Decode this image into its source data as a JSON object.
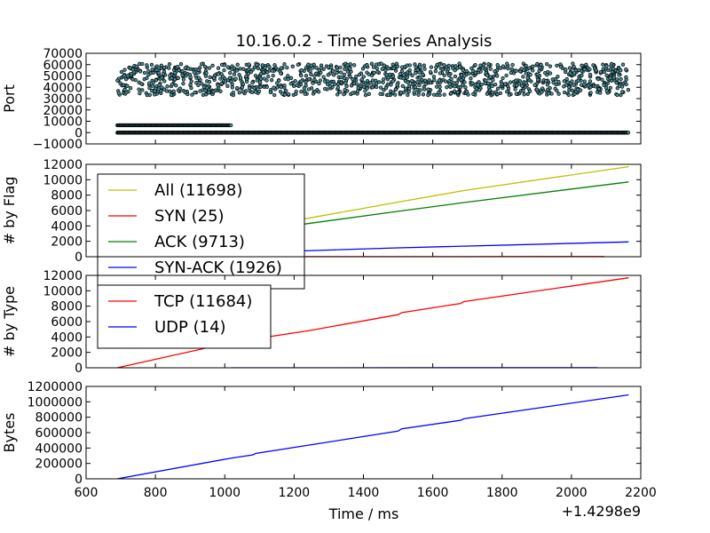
{
  "title": "10.16.0.2 - Time Series Analysis",
  "x_axis": {
    "label": "Time / ms",
    "offset_label": "+1.4298e9",
    "range": [
      600,
      2200
    ],
    "ticks": [
      "600",
      "800",
      "1000",
      "1200",
      "1400",
      "1600",
      "1800",
      "2000",
      "2200"
    ]
  },
  "chart_data": [
    {
      "type": "scatter",
      "ylabel": "Port",
      "xlim": [
        600,
        2200
      ],
      "ylim": [
        -10000,
        70000
      ],
      "yticks": [
        "70000",
        "60000",
        "50000",
        "40000",
        "30000",
        "20000",
        "10000",
        "0",
        "−10000"
      ],
      "series": [
        {
          "name": "",
          "description_points": "ephemeral ports scattered 33000-61000 over x 690-2165",
          "x_range": [
            690,
            2165
          ],
          "y_range": [
            33000,
            61000
          ]
        },
        {
          "name": "",
          "x_range": [
            690,
            1020
          ],
          "y_const": 6500
        },
        {
          "name": "",
          "x_range": [
            690,
            2165
          ],
          "y_const": 0
        }
      ],
      "color": "#000000"
    },
    {
      "type": "line",
      "ylabel": "# by Flag",
      "xlim": [
        600,
        2200
      ],
      "ylim": [
        0,
        12000
      ],
      "yticks": [
        "12000",
        "10000",
        "8000",
        "6000",
        "4000",
        "2000",
        "0"
      ],
      "legend_loc": "upper-left",
      "series": [
        {
          "name": "All (11698)",
          "color": "#bfbf00",
          "x": [
            690,
            1020,
            1240,
            1500,
            1690,
            2165
          ],
          "y": [
            0,
            3300,
            5000,
            7100,
            8600,
            11698
          ]
        },
        {
          "name": "SYN (25)",
          "color": "#ff0000",
          "x": [
            690,
            2095
          ],
          "y": [
            0,
            25
          ]
        },
        {
          "name": "ACK (9713)",
          "color": "#008000",
          "x": [
            690,
            1020,
            1240,
            1500,
            1700,
            2165
          ],
          "y": [
            0,
            2900,
            4300,
            5900,
            7100,
            9713
          ]
        },
        {
          "name": "SYN-ACK (1926)",
          "color": "#0000ff",
          "x": [
            690,
            1500,
            2165
          ],
          "y": [
            0,
            1150,
            1926
          ]
        }
      ]
    },
    {
      "type": "line",
      "ylabel": "# by Type",
      "xlim": [
        600,
        2200
      ],
      "ylim": [
        0,
        12000
      ],
      "yticks": [
        "12000",
        "10000",
        "8000",
        "6000",
        "4000",
        "2000",
        "0"
      ],
      "legend_loc": "upper-left",
      "series": [
        {
          "name": "TCP (11684)",
          "color": "#ff0000",
          "x": [
            690,
            1020,
            1240,
            1500,
            1510,
            1680,
            1690,
            2165
          ],
          "y": [
            0,
            3300,
            4800,
            6900,
            7150,
            8350,
            8600,
            11684
          ]
        },
        {
          "name": "UDP (14)",
          "color": "#0000ff",
          "x": [
            1020,
            2075
          ],
          "y": [
            0,
            14
          ]
        }
      ]
    },
    {
      "type": "line",
      "ylabel": "Bytes",
      "xlim": [
        600,
        2200
      ],
      "ylim": [
        0,
        1200000
      ],
      "yticks": [
        "1200000",
        "1000000",
        "800000",
        "600000",
        "400000",
        "200000",
        "0"
      ],
      "series": [
        {
          "name": "",
          "color": "#0000ff",
          "x": [
            690,
            1020,
            1080,
            1090,
            1500,
            1510,
            1680,
            1690,
            2165
          ],
          "y": [
            0,
            270000,
            310000,
            330000,
            620000,
            650000,
            760000,
            780000,
            1090000
          ]
        }
      ]
    }
  ]
}
